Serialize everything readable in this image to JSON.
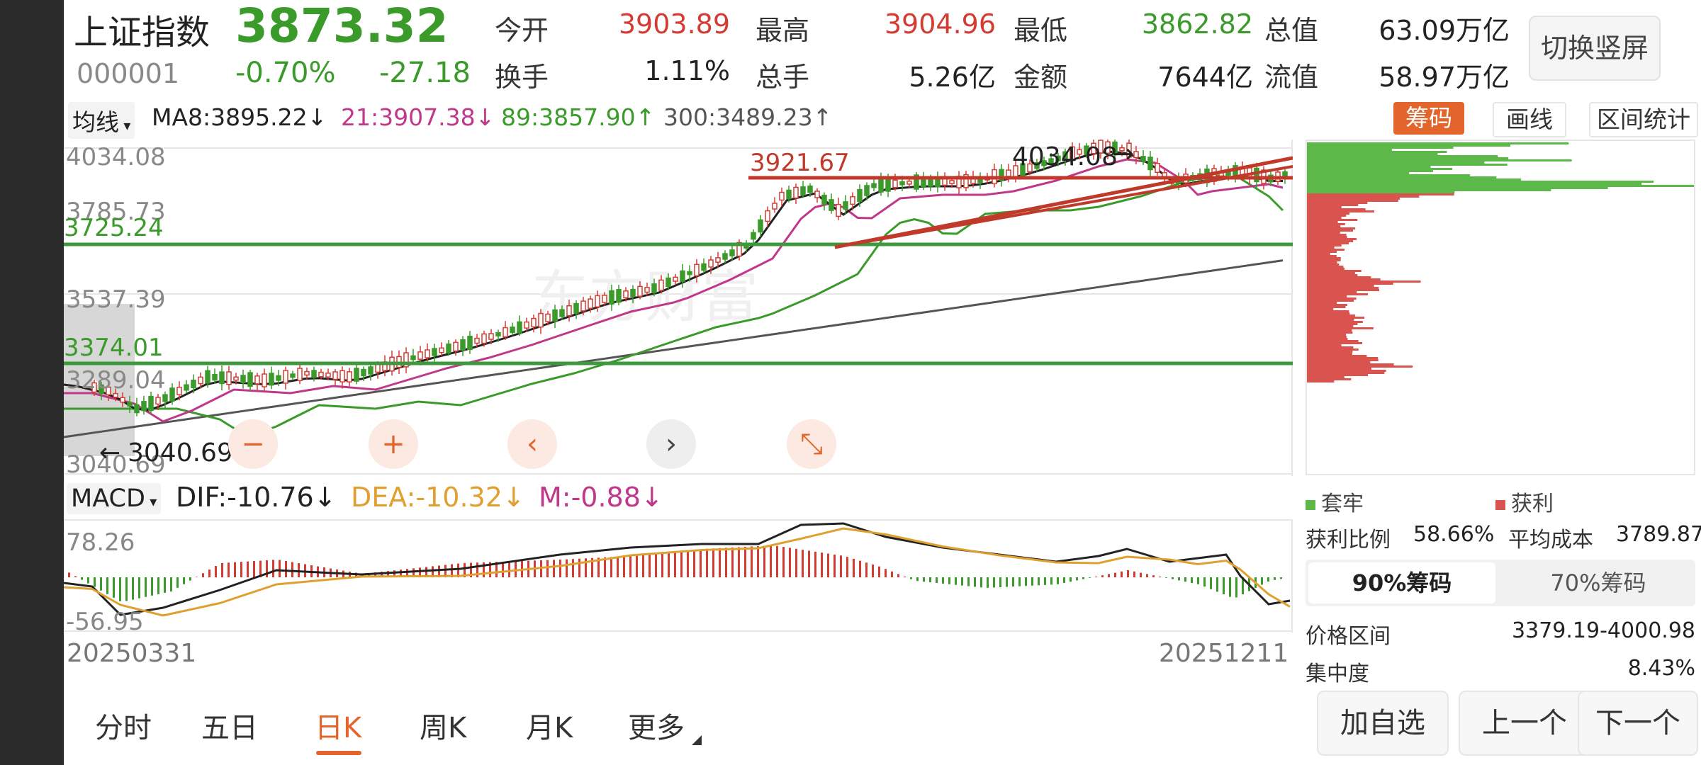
{
  "header": {
    "name": "上证指数",
    "price": "3873.32",
    "code": "000001",
    "change_pct": "-0.70%",
    "change_abs": "-27.18",
    "quotes": [
      {
        "label": "今开",
        "value": "3903.89",
        "tone": "red"
      },
      {
        "label": "最高",
        "value": "3904.96",
        "tone": "red"
      },
      {
        "label": "最低",
        "value": "3862.82",
        "tone": "green"
      },
      {
        "label": "总值",
        "value": "63.09万亿",
        "tone": "dark"
      },
      {
        "label": "换手",
        "value": "1.11%",
        "tone": "dark"
      },
      {
        "label": "总手",
        "value": "5.26亿",
        "tone": "dark"
      },
      {
        "label": "金额",
        "value": "7644亿",
        "tone": "dark"
      },
      {
        "label": "流值",
        "value": "58.97万亿",
        "tone": "dark"
      }
    ],
    "switch_label": "切换竖屏"
  },
  "indicator_bar": {
    "select_label": "均线",
    "ma8": "MA8:3895.22↓",
    "ma21": "21:3907.38↓",
    "ma89": "89:3857.90↑",
    "ma300": "300:3489.23↑",
    "tools": [
      "筹码",
      "画线",
      "区间统计"
    ]
  },
  "kline": {
    "price_labels": {
      "top": "4034.08",
      "p2": "3785.73",
      "p3": "3537.39",
      "p4": "3289.04",
      "bottom": "3040.69"
    },
    "lines": {
      "upper_green": "3725.24",
      "lower_green": "3374.01",
      "red_horizontal": "3921.67"
    },
    "annot_high": "4034.08",
    "annot_low": "3040.69",
    "watermark": "东方财富"
  },
  "macd": {
    "select_label": "MACD",
    "dif": "DIF:-10.76↓",
    "dea": "DEA:-10.32↓",
    "m": "M:-0.88↓",
    "top_label": "78.26",
    "bottom_label": "-56.95"
  },
  "dates": {
    "start": "20250331",
    "end": "20251211"
  },
  "chip_panel": {
    "legend_trapped": "套牢",
    "legend_profit": "获利",
    "profit_ratio_label": "获利比例",
    "profit_ratio": "58.66%",
    "avg_cost_label": "平均成本",
    "avg_cost": "3789.87",
    "tabs": [
      "90%筹码",
      "70%筹码"
    ],
    "range_label": "价格区间",
    "range_value": "3379.19-4000.98",
    "concentration_label": "集中度",
    "concentration_value": "8.43%"
  },
  "period_tabs": [
    "分时",
    "五日",
    "日K",
    "周K",
    "月K",
    "更多"
  ],
  "active_period": "日K",
  "bottom_buttons": [
    "加自选",
    "上一个",
    "下一个"
  ],
  "nav_controls": [
    {
      "icon": "minus-icon",
      "glyph": "−"
    },
    {
      "icon": "plus-icon",
      "glyph": "+"
    },
    {
      "icon": "chevron-left-icon",
      "glyph": "‹"
    },
    {
      "icon": "chevron-right-icon",
      "glyph": "›"
    },
    {
      "icon": "collapse-icon",
      "glyph": "⤡"
    }
  ],
  "colors": {
    "up": "#d43c33",
    "down": "#3a9a2a",
    "accent": "#e3652b",
    "ma8": "#222222",
    "ma21": "#c0388a",
    "ma89": "#3a9a2a",
    "ma300": "#555555",
    "dea": "#e0a030"
  }
}
